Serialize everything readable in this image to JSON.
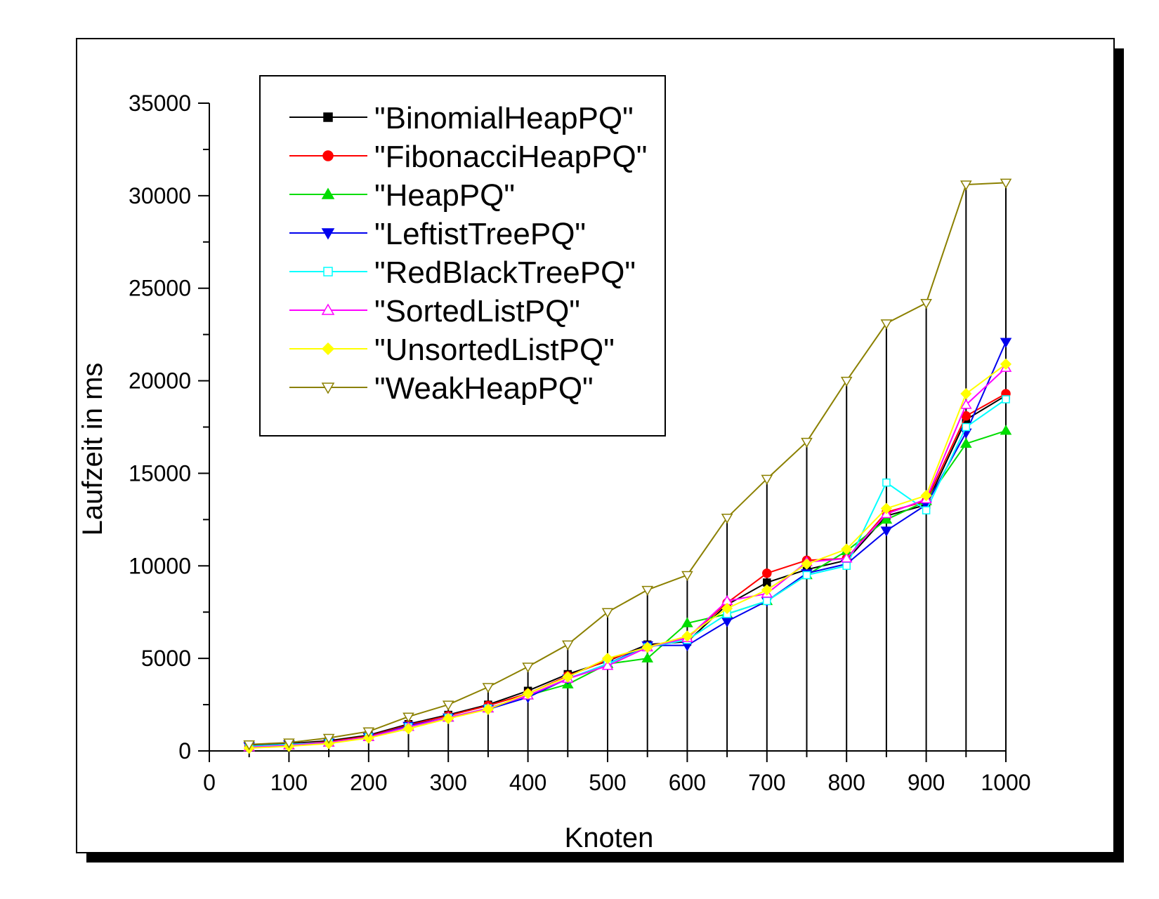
{
  "chart_data": {
    "type": "line",
    "title": "",
    "xlabel": "Knoten",
    "ylabel": "Laufzeit in ms",
    "xlim": [
      0,
      1000
    ],
    "ylim": [
      0,
      35000
    ],
    "x_ticks": [
      0,
      100,
      200,
      300,
      400,
      500,
      600,
      700,
      800,
      900,
      1000
    ],
    "y_ticks": [
      0,
      5000,
      10000,
      15000,
      20000,
      25000,
      30000,
      35000
    ],
    "x": [
      50,
      100,
      150,
      200,
      250,
      300,
      350,
      400,
      450,
      500,
      550,
      600,
      650,
      700,
      750,
      800,
      850,
      900,
      950,
      1000
    ],
    "grid": false,
    "legend_position": "top-left",
    "series": [
      {
        "name": "\"BinomialHeapPQ\"",
        "color": "#000000",
        "marker": "square-filled",
        "values": [
          300,
          400,
          550,
          850,
          1450,
          1950,
          2500,
          3250,
          4150,
          4850,
          5750,
          5900,
          7900,
          9100,
          9800,
          10300,
          12700,
          13300,
          17900,
          19200
        ]
      },
      {
        "name": "\"FibonacciHeapPQ\"",
        "color": "#ff0000",
        "marker": "circle-filled",
        "values": [
          250,
          350,
          500,
          800,
          1400,
          1900,
          2450,
          3100,
          4050,
          4900,
          5650,
          6100,
          8000,
          9600,
          10300,
          10400,
          12900,
          13500,
          18100,
          19300
        ]
      },
      {
        "name": "\"HeapPQ\"",
        "color": "#00dd00",
        "marker": "triangle-up-filled",
        "values": [
          200,
          300,
          450,
          750,
          1300,
          1800,
          2300,
          3000,
          3600,
          4700,
          5000,
          6900,
          7400,
          8100,
          9500,
          10800,
          12500,
          13500,
          16600,
          17300
        ]
      },
      {
        "name": "\"LeftistTreePQ\"",
        "color": "#0000ee",
        "marker": "triangle-down-filled",
        "values": [
          250,
          350,
          450,
          750,
          1350,
          1800,
          2250,
          2900,
          3900,
          4700,
          5700,
          5700,
          7000,
          8100,
          9600,
          10100,
          11900,
          13300,
          17200,
          22100
        ]
      },
      {
        "name": "\"RedBlackTreePQ\"",
        "color": "#00ffff",
        "marker": "square-open",
        "values": [
          250,
          350,
          450,
          750,
          1300,
          1800,
          2300,
          3000,
          3900,
          4700,
          5600,
          6000,
          7400,
          8100,
          9500,
          10000,
          14500,
          13000,
          17500,
          19000
        ]
      },
      {
        "name": "\"SortedListPQ\"",
        "color": "#ff00ff",
        "marker": "triangle-up-open",
        "values": [
          200,
          300,
          450,
          750,
          1300,
          1800,
          2300,
          3000,
          3900,
          4600,
          5600,
          6100,
          8100,
          8500,
          10200,
          10400,
          12800,
          13600,
          18700,
          20700
        ]
      },
      {
        "name": "\"UnsortedListPQ\"",
        "color": "#ffff00",
        "marker": "diamond-filled",
        "values": [
          150,
          250,
          400,
          700,
          1200,
          1750,
          2250,
          3100,
          4000,
          5000,
          5600,
          6200,
          7700,
          8700,
          10100,
          10900,
          13100,
          13800,
          19300,
          20900
        ]
      },
      {
        "name": "\"WeakHeapPQ\"",
        "color": "#8b8000",
        "marker": "triangle-down-open",
        "values": [
          350,
          450,
          700,
          1050,
          1850,
          2500,
          3450,
          4550,
          5750,
          7500,
          8700,
          9500,
          12600,
          14700,
          16700,
          20000,
          23100,
          24200,
          30600,
          30700
        ]
      }
    ],
    "error_bars": {
      "series": "\"WeakHeapPQ\"",
      "color": "#000000",
      "description_from": "vertical lines from each WeakHeapPQ point down to 0"
    }
  }
}
